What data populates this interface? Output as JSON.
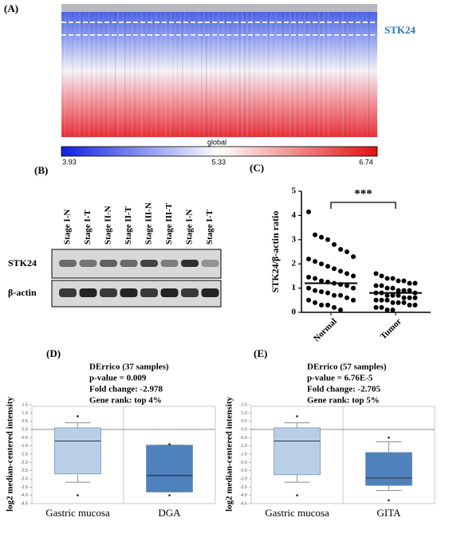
{
  "panel_labels": [
    "(A)",
    "(B)",
    "(C)",
    "(D)",
    "(E)"
  ],
  "heatmap": {
    "gene_label": "STK24",
    "colorbar_label": "global",
    "colorbar_ticks": [
      3.93,
      5.33,
      6.74
    ]
  },
  "blot": {
    "lanes": [
      "Stage I-N",
      "Stage I-T",
      "Stage II-N",
      "Stage II-T",
      "Stage III-N",
      "Stage III-T",
      "Stage I-N",
      "Stage I-T"
    ],
    "rows": [
      "STK24",
      "β-actin"
    ]
  },
  "chart_data": [
    {
      "type": "scatter",
      "ylabel": "STK24/β-actin ratio",
      "categories": [
        "Normal",
        "Tumor"
      ],
      "color": "#000000",
      "series": [
        {
          "values": [
            4.15,
            3.2,
            3.1,
            3.0,
            2.8,
            2.6,
            2.5,
            2.3,
            2.2,
            2.1,
            2.0,
            1.9,
            1.8,
            1.7,
            1.6,
            1.5,
            1.45,
            1.4,
            1.3,
            1.25,
            1.2,
            1.15,
            1.1,
            1.0,
            1.0,
            0.9,
            0.85,
            0.8,
            0.7,
            0.7,
            0.6,
            0.5,
            0.5,
            0.4,
            0.3,
            0.3,
            0.2,
            0.1
          ]
        },
        {
          "values": [
            1.6,
            1.5,
            1.4,
            1.4,
            1.3,
            1.3,
            1.2,
            1.2,
            1.1,
            1.1,
            1.0,
            1.0,
            0.9,
            0.9,
            0.9,
            0.8,
            0.8,
            0.8,
            0.7,
            0.7,
            0.7,
            0.6,
            0.6,
            0.6,
            0.5,
            0.5,
            0.5,
            0.4,
            0.4,
            0.4,
            0.3,
            0.3,
            0.2,
            0.2,
            0.1,
            0.1
          ]
        }
      ],
      "medians": [
        1.2,
        0.8
      ],
      "annotation": "***",
      "ylim": [
        0,
        5
      ],
      "yticks": [
        0,
        1,
        2,
        3,
        4,
        5
      ]
    },
    {
      "type": "box",
      "title_lines": [
        "DErrico (37 samples)",
        "p-value = 0.009",
        "Fold change: -2.978",
        "Gene rank: top 4%"
      ],
      "ylabel": "log2 median-centered intensity",
      "categories": [
        "Gastric mucosa",
        "DGA"
      ],
      "boxes": [
        {
          "color": "#b8cfe6",
          "whislo": -3.2,
          "q1": -2.7,
          "med": -0.7,
          "q3": 0.1,
          "whishi": 0.4,
          "fliers": [
            0.8,
            -4.0
          ]
        },
        {
          "color": "#4f81bd",
          "whislo": -3.8,
          "q1": -3.8,
          "med": -2.8,
          "q3": -0.95,
          "whishi": -0.95,
          "fliers": [
            -0.9,
            -4.0
          ]
        }
      ],
      "ylim": [
        -4.5,
        1.5
      ],
      "yticks": [
        1.5,
        {
          "value": 1,
          "label": "1.0"
        },
        0.5,
        {
          "value": 0,
          "label": "0.0"
        },
        -0.5,
        {
          "value": -1,
          "label": "-1.0"
        },
        -1.5,
        {
          "value": -2,
          "label": "-2.0"
        },
        -2.5,
        {
          "value": -3,
          "label": "-3.0"
        },
        -3.5,
        {
          "value": -4,
          "label": "-4.0"
        },
        -4.5
      ]
    },
    {
      "type": "box",
      "title_lines": [
        "DErrico (57 samples)",
        "p-value = 6.76E-5",
        "Fold change: -2.705",
        "Gene rank: top 5%"
      ],
      "ylabel": "log2 median-centered intensity",
      "categories": [
        "Gastric mucosa",
        "GITA"
      ],
      "boxes": [
        {
          "color": "#b8cfe6",
          "whislo": -3.2,
          "q1": -2.75,
          "med": -0.7,
          "q3": 0.1,
          "whishi": 0.4,
          "fliers": [
            0.8,
            -4.0
          ]
        },
        {
          "color": "#4f81bd",
          "whislo": -3.7,
          "q1": -3.4,
          "med": -2.95,
          "q3": -1.4,
          "whishi": -0.75,
          "fliers": [
            -0.5,
            -4.3
          ]
        }
      ],
      "ylim": [
        -4.5,
        1.5
      ],
      "yticks": [
        1.5,
        {
          "value": 1,
          "label": "1.0"
        },
        0.5,
        {
          "value": 0,
          "label": "0.0"
        },
        -0.5,
        {
          "value": -1,
          "label": "-1.0"
        },
        -1.5,
        {
          "value": -2,
          "label": "-2.0"
        },
        -2.5,
        {
          "value": -3,
          "label": "-3.0"
        },
        -3.5,
        {
          "value": -4,
          "label": "-4.0"
        },
        -4.5
      ]
    }
  ]
}
